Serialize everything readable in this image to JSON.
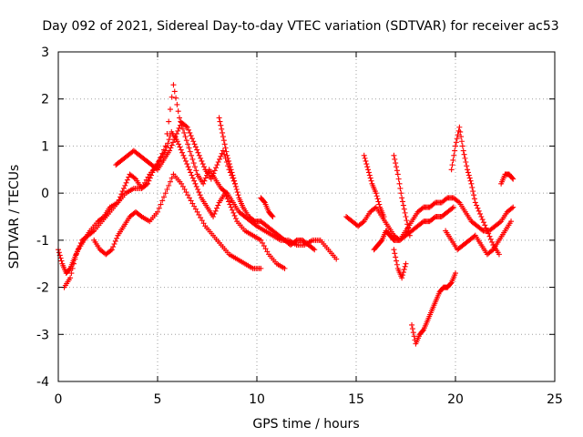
{
  "chart_data": {
    "type": "scatter",
    "title": "Day 092 of 2021, Sidereal Day-to-day VTEC variation (SDTVAR) for receiver ac53",
    "xlabel": "GPS time / hours",
    "ylabel": "SDTVAR / TECUs",
    "xlim": [
      0,
      25
    ],
    "ylim": [
      -4,
      3
    ],
    "xticks": [
      0,
      5,
      10,
      15,
      20,
      25
    ],
    "yticks": [
      -4,
      -3,
      -2,
      -1,
      0,
      1,
      2,
      3
    ],
    "grid": true,
    "marker": "+",
    "color": "#ff0000",
    "series": [
      {
        "name": "track-1",
        "x": [
          0,
          0.2,
          0.4,
          0.6,
          0.8,
          1,
          1.3,
          1.6,
          2,
          2.3,
          2.6,
          3,
          3.3,
          3.6,
          3.9,
          4.2,
          4.5,
          4.8,
          5.1,
          5.4,
          5.7,
          6,
          6.3,
          6.6,
          6.9,
          7.2,
          7.5,
          7.8,
          8.1,
          8.4,
          8.7,
          9,
          9.4,
          9.8,
          10.2,
          10.6,
          11,
          11.4
        ],
        "y": [
          -1.2,
          -1.5,
          -1.7,
          -1.6,
          -1.4,
          -1.2,
          -1,
          -0.8,
          -0.6,
          -0.5,
          -0.3,
          -0.2,
          0.1,
          0.4,
          0.3,
          0.1,
          0.2,
          0.5,
          0.7,
          0.9,
          1.3,
          1.1,
          0.8,
          0.5,
          0.2,
          -0.1,
          -0.3,
          -0.5,
          -0.2,
          0,
          -0.3,
          -0.6,
          -0.8,
          -0.9,
          -1,
          -1.3,
          -1.5,
          -1.6
        ]
      },
      {
        "name": "track-2",
        "x": [
          0.3,
          0.6,
          0.9,
          1.2,
          1.5,
          1.8,
          2.2,
          2.6,
          3,
          3.4,
          3.8,
          4.2,
          4.6,
          5,
          5.4,
          5.8,
          6.1,
          6.4,
          6.7,
          7,
          7.3,
          7.6,
          7.9,
          8.2,
          8.5,
          8.8,
          9.1,
          9.4,
          9.7,
          10,
          10.4,
          10.8,
          11.2,
          11.6,
          12,
          12.4,
          12.8,
          13.2,
          13.6,
          14
        ],
        "y": [
          -2,
          -1.8,
          -1.3,
          -1,
          -0.9,
          -0.8,
          -0.6,
          -0.4,
          -0.2,
          0,
          0.1,
          0.1,
          0.4,
          0.6,
          1,
          2.3,
          1.6,
          1.2,
          0.8,
          0.4,
          0.2,
          0.5,
          0.3,
          0.1,
          0,
          -0.2,
          -0.4,
          -0.5,
          -0.6,
          -0.7,
          -0.8,
          -0.9,
          -1,
          -1,
          -1.1,
          -1.1,
          -1,
          -1,
          -1.2,
          -1.4
        ]
      },
      {
        "name": "track-3",
        "x": [
          1.8,
          2.1,
          2.4,
          2.7,
          3,
          3.3,
          3.6,
          3.9,
          4.2,
          4.6,
          5,
          5.4,
          5.8,
          6.2,
          6.6,
          7,
          7.4,
          7.8,
          8.2,
          8.6,
          9,
          9.4,
          9.8,
          10.2
        ],
        "y": [
          -1,
          -1.2,
          -1.3,
          -1.2,
          -0.9,
          -0.7,
          -0.5,
          -0.4,
          -0.5,
          -0.6,
          -0.4,
          0,
          0.4,
          0.2,
          -0.1,
          -0.4,
          -0.7,
          -0.9,
          -1.1,
          -1.3,
          -1.4,
          -1.5,
          -1.6,
          -1.6
        ]
      },
      {
        "name": "track-4",
        "x": [
          2.9,
          3.2,
          3.5,
          3.8,
          4.1,
          4.4,
          4.7,
          5,
          5.3,
          5.6,
          5.9,
          6.2,
          6.5,
          6.8,
          7.1,
          7.4,
          7.7,
          8,
          8.3,
          8.6,
          8.9
        ],
        "y": [
          0.6,
          0.7,
          0.8,
          0.9,
          0.8,
          0.7,
          0.6,
          0.5,
          0.7,
          0.9,
          1.2,
          1.5,
          1.4,
          1.1,
          0.8,
          0.5,
          0.3,
          0.6,
          0.9,
          0.5,
          0.2
        ]
      },
      {
        "name": "track-5",
        "x": [
          8.1,
          8.3,
          8.5,
          8.7,
          8.9,
          9.1,
          9.3,
          9.6,
          9.9,
          10.2,
          10.5,
          10.8,
          11.1,
          11.4,
          11.7,
          12,
          12.3,
          12.6,
          12.9
        ],
        "y": [
          1.6,
          1.2,
          0.8,
          0.5,
          0.2,
          -0.1,
          -0.3,
          -0.5,
          -0.6,
          -0.6,
          -0.7,
          -0.8,
          -0.9,
          -1,
          -1.1,
          -1,
          -1,
          -1.1,
          -1.2
        ]
      },
      {
        "name": "track-6",
        "x": [
          10.2,
          10.4,
          10.6,
          10.8
        ],
        "y": [
          -0.1,
          -0.2,
          -0.4,
          -0.5
        ]
      },
      {
        "name": "track-7",
        "x": [
          14.5,
          14.8,
          15.1,
          15.4,
          15.7,
          16,
          16.3,
          16.6,
          16.9,
          17.2,
          17.5,
          17.8,
          18.1,
          18.4,
          18.7,
          19,
          19.3,
          19.6,
          19.9,
          20.2,
          20.5,
          20.8,
          21.1,
          21.4,
          21.7,
          22,
          22.3,
          22.6,
          22.9
        ],
        "y": [
          -0.5,
          -0.6,
          -0.7,
          -0.6,
          -0.4,
          -0.3,
          -0.5,
          -0.7,
          -0.9,
          -1,
          -0.8,
          -0.6,
          -0.4,
          -0.3,
          -0.3,
          -0.2,
          -0.2,
          -0.1,
          -0.1,
          -0.2,
          -0.4,
          -0.6,
          -0.7,
          -0.8,
          -0.8,
          -0.7,
          -0.6,
          -0.4,
          -0.3
        ]
      },
      {
        "name": "track-8",
        "x": [
          15.4,
          15.6,
          15.8,
          16,
          16.2,
          16.4
        ],
        "y": [
          0.8,
          0.5,
          0.2,
          0,
          -0.3,
          -0.5
        ]
      },
      {
        "name": "track-9",
        "x": [
          15.9,
          16.1,
          16.3,
          16.5,
          16.7,
          16.9,
          17.2,
          17.5,
          17.8,
          18.1,
          18.4,
          18.7,
          19,
          19.3,
          19.6,
          19.9
        ],
        "y": [
          -1.2,
          -1.1,
          -1,
          -0.8,
          -0.9,
          -1,
          -1,
          -0.9,
          -0.8,
          -0.7,
          -0.6,
          -0.6,
          -0.5,
          -0.5,
          -0.4,
          -0.3
        ]
      },
      {
        "name": "track-10",
        "x": [
          16.9,
          17.1,
          17.3,
          17.5,
          17.7
        ],
        "y": [
          0.8,
          0.4,
          -0.1,
          -0.5,
          -0.9
        ]
      },
      {
        "name": "track-11",
        "x": [
          16.9,
          17.1,
          17.3,
          17.5
        ],
        "y": [
          -1.2,
          -1.6,
          -1.8,
          -1.5
        ]
      },
      {
        "name": "track-12",
        "x": [
          17.8,
          18,
          18.2,
          18.4,
          18.6,
          18.8,
          19,
          19.2,
          19.4,
          19.6,
          19.8,
          20
        ],
        "y": [
          -2.8,
          -3.2,
          -3,
          -2.9,
          -2.7,
          -2.5,
          -2.3,
          -2.1,
          -2,
          -2,
          -1.9,
          -1.7
        ]
      },
      {
        "name": "track-13",
        "x": [
          19.8,
          20,
          20.2,
          20.4,
          20.6,
          20.8,
          21,
          21.3,
          21.6,
          21.9,
          22.2
        ],
        "y": [
          0.5,
          1,
          1.4,
          0.9,
          0.5,
          0.2,
          -0.2,
          -0.5,
          -0.8,
          -1.1,
          -1.3
        ]
      },
      {
        "name": "track-14",
        "x": [
          19.5,
          19.8,
          20.1,
          20.4,
          20.7,
          21,
          21.3,
          21.6,
          21.9,
          22.2,
          22.5,
          22.8
        ],
        "y": [
          -0.8,
          -1,
          -1.2,
          -1.1,
          -1,
          -0.9,
          -1.1,
          -1.3,
          -1.2,
          -1,
          -0.8,
          -0.6
        ]
      },
      {
        "name": "track-15",
        "x": [
          22.3,
          22.5,
          22.7,
          22.9
        ],
        "y": [
          0.2,
          0.4,
          0.4,
          0.3
        ]
      }
    ]
  }
}
